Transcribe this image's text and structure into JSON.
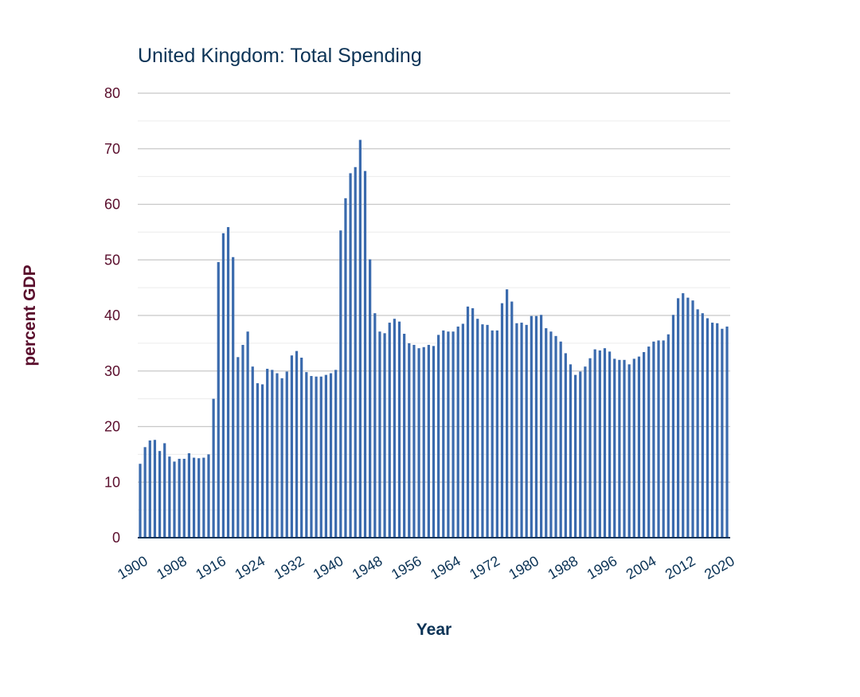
{
  "colors": {
    "bar": "#3a6aad",
    "title": "#0b3356",
    "y_axis_text": "#5a0e2c",
    "x_axis_text": "#0b3356",
    "grid_major": "#c8c8c8",
    "grid_minor": "#ececec",
    "axis_line": "#0b3356"
  },
  "chart_data": {
    "type": "bar",
    "title": "United Kingdom: Total Spending",
    "xlabel": "Year",
    "ylabel": "percent GDP",
    "ylim": [
      0,
      80
    ],
    "y_ticks": [
      0,
      10,
      20,
      30,
      40,
      50,
      60,
      70,
      80
    ],
    "x_tick_labels": [
      "1900",
      "1908",
      "1916",
      "1924",
      "1932",
      "1940",
      "1948",
      "1956",
      "1964",
      "1972",
      "1980",
      "1988",
      "1996",
      "2004",
      "2012",
      "2020"
    ],
    "grid": true,
    "legend": "none",
    "x": [
      1900,
      1901,
      1902,
      1903,
      1904,
      1905,
      1906,
      1907,
      1908,
      1909,
      1910,
      1911,
      1912,
      1913,
      1914,
      1915,
      1916,
      1917,
      1918,
      1919,
      1920,
      1921,
      1922,
      1923,
      1924,
      1925,
      1926,
      1927,
      1928,
      1929,
      1930,
      1931,
      1932,
      1933,
      1934,
      1935,
      1936,
      1937,
      1938,
      1939,
      1940,
      1941,
      1942,
      1943,
      1944,
      1945,
      1946,
      1947,
      1948,
      1949,
      1950,
      1951,
      1952,
      1953,
      1954,
      1955,
      1956,
      1957,
      1958,
      1959,
      1960,
      1961,
      1962,
      1963,
      1964,
      1965,
      1966,
      1967,
      1968,
      1969,
      1970,
      1971,
      1972,
      1973,
      1974,
      1975,
      1976,
      1977,
      1978,
      1979,
      1980,
      1981,
      1982,
      1983,
      1984,
      1985,
      1986,
      1987,
      1988,
      1989,
      1990,
      1991,
      1992,
      1993,
      1994,
      1995,
      1996,
      1997,
      1998,
      1999,
      2000,
      2001,
      2002,
      2003,
      2004,
      2005,
      2006,
      2007,
      2008,
      2009,
      2010,
      2011,
      2012,
      2013,
      2014,
      2015,
      2016,
      2017,
      2018,
      2019,
      2020
    ],
    "values": [
      13.3,
      16.3,
      17.5,
      17.6,
      15.6,
      17.0,
      14.6,
      13.7,
      14.2,
      14.2,
      15.2,
      14.4,
      14.3,
      14.4,
      15.0,
      25.0,
      49.6,
      54.8,
      55.9,
      50.5,
      32.5,
      34.7,
      37.1,
      30.8,
      27.8,
      27.6,
      30.4,
      30.2,
      29.6,
      28.7,
      29.9,
      32.8,
      33.6,
      32.4,
      29.8,
      29.1,
      29.0,
      29.0,
      29.3,
      29.6,
      30.2,
      55.3,
      61.1,
      65.6,
      66.7,
      71.6,
      66.0,
      50.1,
      40.4,
      37.1,
      36.8,
      38.7,
      39.4,
      38.9,
      36.7,
      35.0,
      34.7,
      34.1,
      34.3,
      34.7,
      34.5,
      36.5,
      37.3,
      37.1,
      37.1,
      38.0,
      38.5,
      41.6,
      41.3,
      39.4,
      38.4,
      38.3,
      37.3,
      37.3,
      42.2,
      44.7,
      42.5,
      38.6,
      38.7,
      38.3,
      39.9,
      39.9,
      40.1,
      37.7,
      37.1,
      36.3,
      35.3,
      33.2,
      31.2,
      29.3,
      29.9,
      30.8,
      32.3,
      33.9,
      33.7,
      34.1,
      33.5,
      32.2,
      32.0,
      32.0,
      31.2,
      32.2,
      32.6,
      33.4,
      34.4,
      35.3,
      35.5,
      35.5,
      36.6,
      40.1,
      43.1,
      44.0,
      43.2,
      42.7,
      41.1,
      40.4,
      39.5,
      38.7,
      38.6,
      37.6,
      38.0
    ]
  }
}
